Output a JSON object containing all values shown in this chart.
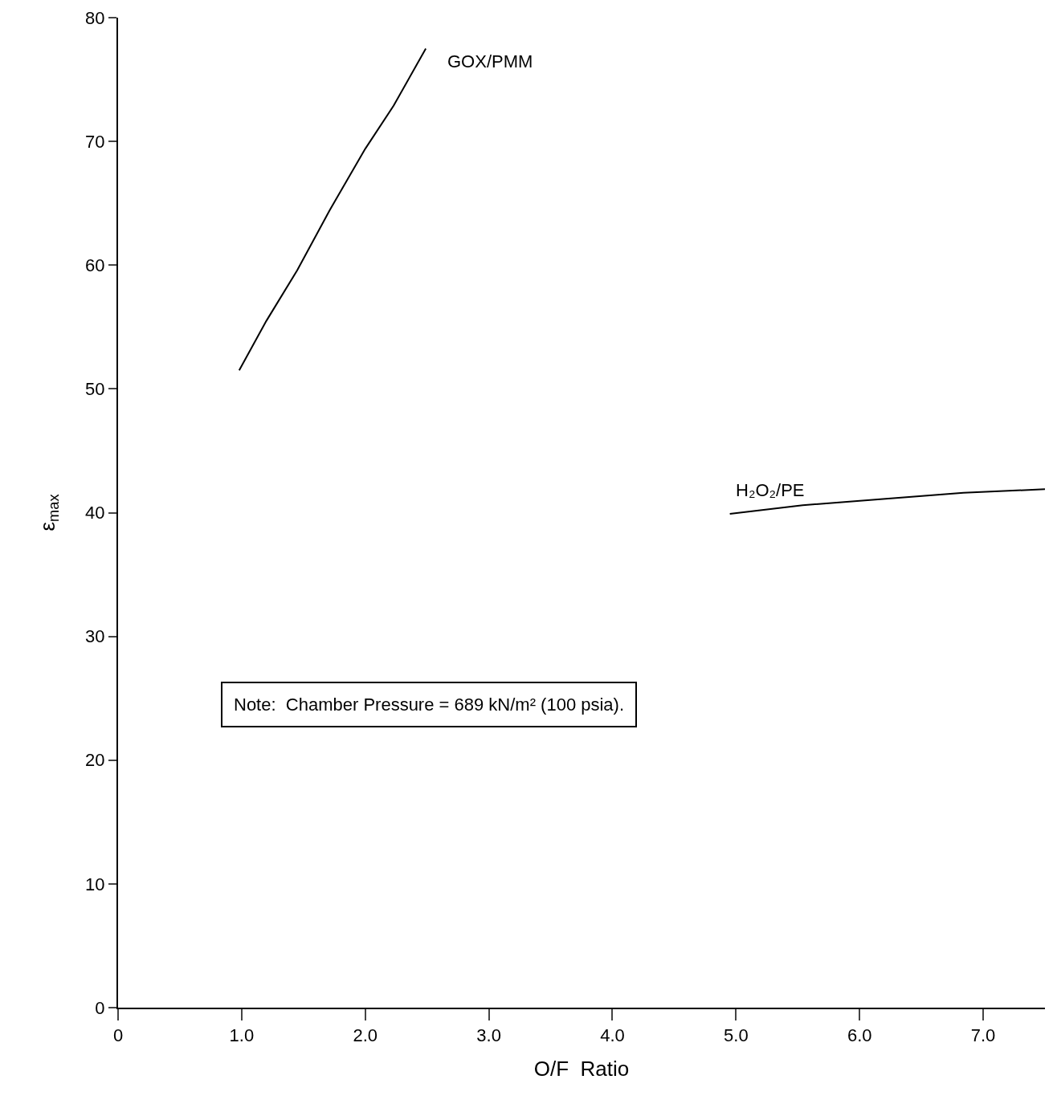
{
  "chart_data": {
    "type": "line",
    "xlabel": "O/F  Ratio",
    "ylabel": "ε$_{max}$",
    "xlim": [
      0,
      7.5
    ],
    "ylim": [
      0,
      80
    ],
    "xticks": [
      0,
      {
        "value": 1,
        "label": "1.0"
      },
      {
        "value": 2,
        "label": "2.0"
      },
      {
        "value": 3,
        "label": "3.0"
      },
      {
        "value": 4,
        "label": "4.0"
      },
      {
        "value": 5,
        "label": "5.0"
      },
      {
        "value": 6,
        "label": "6.0"
      },
      {
        "value": 7,
        "label": "7.0"
      }
    ],
    "yticks": [
      0,
      10,
      20,
      30,
      40,
      50,
      60,
      70,
      80
    ],
    "grid": false,
    "legend": false,
    "marker": "none",
    "line_style": "solid",
    "series": [
      {
        "name": "GOX/PMM",
        "color": "#000000",
        "x": [
          0.98,
          1.2,
          1.45,
          1.71,
          2.0,
          2.23,
          2.49
        ],
        "values": [
          51.5,
          55.5,
          59.6,
          64.4,
          69.4,
          72.9,
          77.5
        ]
      },
      {
        "name": "H₂O₂/PE",
        "color": "#000000",
        "x": [
          4.95,
          5.54,
          6.19,
          6.84,
          7.5
        ],
        "values": [
          39.9,
          40.6,
          41.1,
          41.6,
          41.9
        ]
      }
    ],
    "annotations": [
      "Note:  Chamber Pressure = 689 kN/m² (100 psia)."
    ]
  }
}
